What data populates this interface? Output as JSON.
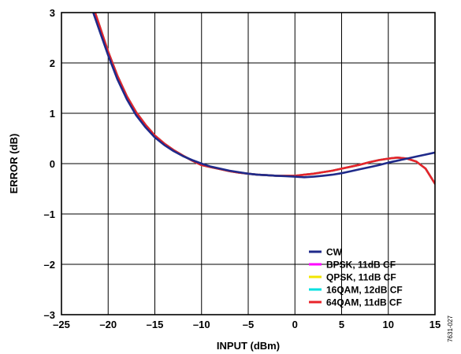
{
  "chart_data": {
    "type": "line",
    "xlabel": "INPUT (dBm)",
    "ylabel": "ERROR (dB)",
    "xlim": [
      -25,
      15
    ],
    "ylim": [
      -3,
      3
    ],
    "x_ticks": [
      -25,
      -20,
      -15,
      -10,
      -5,
      0,
      5,
      10,
      15
    ],
    "y_ticks": [
      -3,
      -2,
      -1,
      0,
      1,
      2,
      3
    ],
    "x_tick_labels": [
      "–25",
      "–20",
      "–15",
      "–10",
      "–5",
      "0",
      "5",
      "10",
      "15"
    ],
    "y_tick_labels": [
      "–3",
      "–2",
      "–1",
      "0",
      "1",
      "2",
      "3"
    ],
    "grid": true,
    "legend_position": "bottom-right",
    "figure_id": "7631-027",
    "series": [
      {
        "name": "CW",
        "color": "#1f2a8a",
        "points": [
          [
            -21.6,
            3.0
          ],
          [
            -21,
            2.68
          ],
          [
            -20,
            2.15
          ],
          [
            -19,
            1.67
          ],
          [
            -18,
            1.28
          ],
          [
            -17,
            0.96
          ],
          [
            -16,
            0.72
          ],
          [
            -15,
            0.52
          ],
          [
            -14,
            0.37
          ],
          [
            -13,
            0.25
          ],
          [
            -12,
            0.15
          ],
          [
            -11,
            0.07
          ],
          [
            -10,
            0.0
          ],
          [
            -9,
            -0.06
          ],
          [
            -8,
            -0.1
          ],
          [
            -7,
            -0.14
          ],
          [
            -6,
            -0.17
          ],
          [
            -5,
            -0.2
          ],
          [
            -4,
            -0.22
          ],
          [
            -3,
            -0.23
          ],
          [
            -2,
            -0.24
          ],
          [
            -1,
            -0.25
          ],
          [
            0,
            -0.26
          ],
          [
            1,
            -0.27
          ],
          [
            2,
            -0.26
          ],
          [
            3,
            -0.24
          ],
          [
            4,
            -0.22
          ],
          [
            5,
            -0.19
          ],
          [
            6,
            -0.15
          ],
          [
            7,
            -0.11
          ],
          [
            8,
            -0.07
          ],
          [
            9,
            -0.03
          ],
          [
            10,
            0.02
          ],
          [
            11,
            0.06
          ],
          [
            12,
            0.1
          ],
          [
            13,
            0.14
          ],
          [
            14,
            0.18
          ],
          [
            15,
            0.22
          ]
        ]
      },
      {
        "name": "BPSK, 11dB CF",
        "color": "#ff00ff",
        "points": [
          [
            -21.4,
            3.0
          ],
          [
            -21,
            2.78
          ],
          [
            -20,
            2.22
          ],
          [
            -19,
            1.74
          ],
          [
            -18,
            1.34
          ],
          [
            -17,
            1.02
          ],
          [
            -16,
            0.77
          ],
          [
            -15,
            0.56
          ],
          [
            -14,
            0.4
          ],
          [
            -13,
            0.27
          ],
          [
            -12,
            0.16
          ],
          [
            -11,
            0.06
          ],
          [
            -10,
            -0.03
          ],
          [
            -9,
            -0.07
          ],
          [
            -8,
            -0.11
          ],
          [
            -7,
            -0.15
          ],
          [
            -6,
            -0.18
          ],
          [
            -5,
            -0.2
          ],
          [
            -4,
            -0.22
          ],
          [
            -3,
            -0.23
          ],
          [
            -2,
            -0.24
          ],
          [
            -1,
            -0.24
          ],
          [
            0,
            -0.24
          ],
          [
            1,
            -0.22
          ],
          [
            2,
            -0.2
          ],
          [
            3,
            -0.17
          ],
          [
            4,
            -0.14
          ],
          [
            5,
            -0.1
          ],
          [
            6,
            -0.06
          ],
          [
            7,
            -0.02
          ],
          [
            8,
            0.03
          ],
          [
            9,
            0.07
          ],
          [
            10,
            0.1
          ],
          [
            11,
            0.12
          ],
          [
            12,
            0.1
          ],
          [
            13,
            0.04
          ],
          [
            14,
            -0.1
          ],
          [
            15,
            -0.4
          ]
        ]
      },
      {
        "name": "QPSK, 11dB CF",
        "color": "#f2e600",
        "points": [
          [
            -21.4,
            3.0
          ],
          [
            -21,
            2.78
          ],
          [
            -20,
            2.22
          ],
          [
            -19,
            1.74
          ],
          [
            -18,
            1.34
          ],
          [
            -17,
            1.02
          ],
          [
            -16,
            0.77
          ],
          [
            -15,
            0.56
          ],
          [
            -14,
            0.4
          ],
          [
            -13,
            0.27
          ],
          [
            -12,
            0.16
          ],
          [
            -11,
            0.06
          ],
          [
            -10,
            -0.03
          ],
          [
            -9,
            -0.07
          ],
          [
            -8,
            -0.11
          ],
          [
            -7,
            -0.15
          ],
          [
            -6,
            -0.18
          ],
          [
            -5,
            -0.2
          ],
          [
            -4,
            -0.22
          ],
          [
            -3,
            -0.23
          ],
          [
            -2,
            -0.24
          ],
          [
            -1,
            -0.24
          ],
          [
            0,
            -0.24
          ],
          [
            1,
            -0.22
          ],
          [
            2,
            -0.2
          ],
          [
            3,
            -0.17
          ],
          [
            4,
            -0.14
          ],
          [
            5,
            -0.1
          ],
          [
            6,
            -0.06
          ],
          [
            7,
            -0.02
          ],
          [
            8,
            0.03
          ],
          [
            9,
            0.07
          ],
          [
            10,
            0.1
          ],
          [
            11,
            0.12
          ],
          [
            12,
            0.1
          ],
          [
            13,
            0.04
          ],
          [
            14,
            -0.1
          ],
          [
            15,
            -0.4
          ]
        ]
      },
      {
        "name": "16QAM, 12dB CF",
        "color": "#00e0e0",
        "points": [
          [
            -21.4,
            3.0
          ],
          [
            -21,
            2.78
          ],
          [
            -20,
            2.22
          ],
          [
            -19,
            1.74
          ],
          [
            -18,
            1.34
          ],
          [
            -17,
            1.02
          ],
          [
            -16,
            0.77
          ],
          [
            -15,
            0.56
          ],
          [
            -14,
            0.4
          ],
          [
            -13,
            0.27
          ],
          [
            -12,
            0.16
          ],
          [
            -11,
            0.06
          ],
          [
            -10,
            -0.03
          ],
          [
            -9,
            -0.07
          ],
          [
            -8,
            -0.11
          ],
          [
            -7,
            -0.15
          ],
          [
            -6,
            -0.18
          ],
          [
            -5,
            -0.2
          ],
          [
            -4,
            -0.22
          ],
          [
            -3,
            -0.23
          ],
          [
            -2,
            -0.24
          ],
          [
            -1,
            -0.24
          ],
          [
            0,
            -0.24
          ],
          [
            1,
            -0.22
          ],
          [
            2,
            -0.2
          ],
          [
            3,
            -0.17
          ],
          [
            4,
            -0.14
          ],
          [
            5,
            -0.1
          ],
          [
            6,
            -0.06
          ],
          [
            7,
            -0.02
          ],
          [
            8,
            0.03
          ],
          [
            9,
            0.07
          ],
          [
            10,
            0.1
          ],
          [
            11,
            0.12
          ],
          [
            12,
            0.1
          ],
          [
            13,
            0.04
          ],
          [
            14,
            -0.1
          ],
          [
            15,
            -0.4
          ]
        ]
      },
      {
        "name": "64QAM, 11dB CF",
        "color": "#e8232a",
        "points": [
          [
            -21.4,
            3.0
          ],
          [
            -21,
            2.78
          ],
          [
            -20,
            2.22
          ],
          [
            -19,
            1.74
          ],
          [
            -18,
            1.34
          ],
          [
            -17,
            1.02
          ],
          [
            -16,
            0.77
          ],
          [
            -15,
            0.56
          ],
          [
            -14,
            0.4
          ],
          [
            -13,
            0.27
          ],
          [
            -12,
            0.16
          ],
          [
            -11,
            0.06
          ],
          [
            -10,
            -0.03
          ],
          [
            -9,
            -0.07
          ],
          [
            -8,
            -0.11
          ],
          [
            -7,
            -0.15
          ],
          [
            -6,
            -0.18
          ],
          [
            -5,
            -0.2
          ],
          [
            -4,
            -0.22
          ],
          [
            -3,
            -0.23
          ],
          [
            -2,
            -0.24
          ],
          [
            -1,
            -0.24
          ],
          [
            0,
            -0.24
          ],
          [
            1,
            -0.22
          ],
          [
            2,
            -0.2
          ],
          [
            3,
            -0.17
          ],
          [
            4,
            -0.14
          ],
          [
            5,
            -0.1
          ],
          [
            6,
            -0.06
          ],
          [
            7,
            -0.02
          ],
          [
            8,
            0.03
          ],
          [
            9,
            0.07
          ],
          [
            10,
            0.1
          ],
          [
            11,
            0.12
          ],
          [
            12,
            0.1
          ],
          [
            13,
            0.04
          ],
          [
            14,
            -0.1
          ],
          [
            15,
            -0.4
          ]
        ]
      }
    ]
  }
}
